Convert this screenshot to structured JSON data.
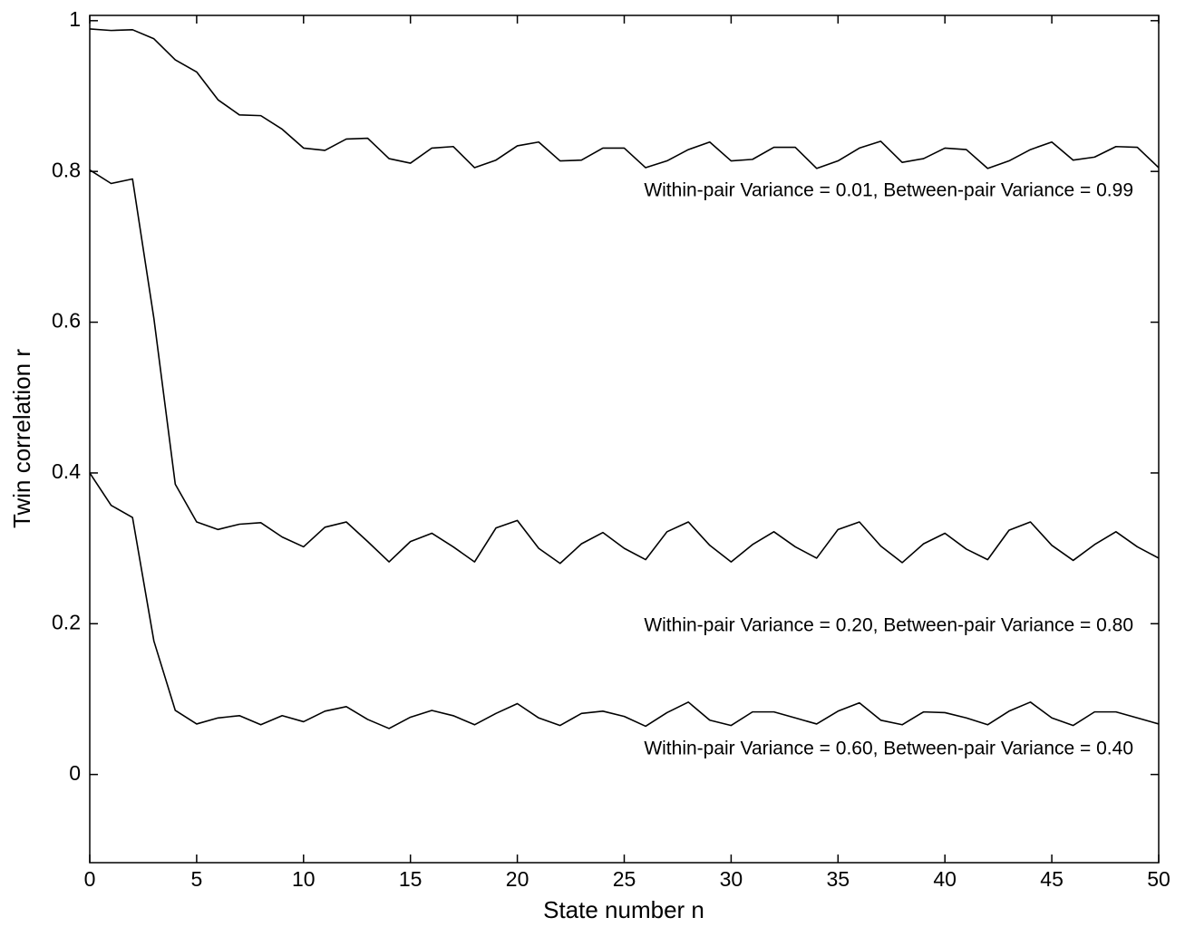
{
  "chart_data": {
    "type": "line",
    "xlabel": "State number n",
    "ylabel": "Twin correlation r",
    "x": [
      0,
      1,
      2,
      3,
      4,
      5,
      6,
      7,
      8,
      9,
      10,
      11,
      12,
      13,
      14,
      15,
      16,
      17,
      18,
      19,
      20,
      21,
      22,
      23,
      24,
      25,
      26,
      27,
      28,
      29,
      30,
      31,
      32,
      33,
      34,
      35,
      36,
      37,
      38,
      39,
      40,
      41,
      42,
      43,
      44,
      45,
      46,
      47,
      48,
      49,
      50
    ],
    "series": [
      {
        "name": "Within-pair Variance = 0.01, Between-pair Variance = 0.99",
        "color": "#000000",
        "values": [
          0.989,
          0.987,
          0.988,
          0.976,
          0.948,
          0.932,
          0.895,
          0.875,
          0.874,
          0.856,
          0.831,
          0.828,
          0.843,
          0.844,
          0.817,
          0.811,
          0.831,
          0.833,
          0.805,
          0.815,
          0.834,
          0.839,
          0.814,
          0.815,
          0.831,
          0.831,
          0.805,
          0.814,
          0.829,
          0.839,
          0.814,
          0.816,
          0.832,
          0.832,
          0.804,
          0.814,
          0.831,
          0.84,
          0.812,
          0.817,
          0.831,
          0.829,
          0.804,
          0.814,
          0.829,
          0.839,
          0.815,
          0.819,
          0.833,
          0.832,
          0.805
        ]
      },
      {
        "name": "Within-pair Variance = 0.20, Between-pair Variance = 0.80",
        "color": "#000000",
        "values": [
          0.802,
          0.784,
          0.79,
          0.605,
          0.385,
          0.335,
          0.325,
          0.332,
          0.334,
          0.315,
          0.302,
          0.328,
          0.335,
          0.309,
          0.282,
          0.309,
          0.32,
          0.302,
          0.282,
          0.327,
          0.337,
          0.3,
          0.28,
          0.306,
          0.321,
          0.3,
          0.285,
          0.322,
          0.335,
          0.304,
          0.282,
          0.305,
          0.322,
          0.302,
          0.287,
          0.325,
          0.335,
          0.303,
          0.281,
          0.306,
          0.32,
          0.299,
          0.285,
          0.324,
          0.335,
          0.304,
          0.284,
          0.305,
          0.322,
          0.302,
          0.287
        ]
      },
      {
        "name": "Within-pair Variance = 0.60, Between-pair Variance = 0.40",
        "color": "#000000",
        "values": [
          0.4,
          0.357,
          0.341,
          0.177,
          0.085,
          0.067,
          0.075,
          0.078,
          0.066,
          0.078,
          0.07,
          0.084,
          0.09,
          0.073,
          0.061,
          0.076,
          0.085,
          0.078,
          0.066,
          0.081,
          0.094,
          0.075,
          0.065,
          0.081,
          0.084,
          0.077,
          0.064,
          0.082,
          0.096,
          0.072,
          0.065,
          0.083,
          0.083,
          0.075,
          0.067,
          0.084,
          0.095,
          0.072,
          0.066,
          0.083,
          0.082,
          0.075,
          0.066,
          0.084,
          0.096,
          0.075,
          0.065,
          0.083,
          0.083,
          0.075,
          0.067
        ]
      }
    ],
    "xlim": [
      0,
      50
    ],
    "xticks": [
      0,
      5,
      10,
      15,
      20,
      25,
      30,
      35,
      40,
      45,
      50
    ],
    "ylim": [
      -0.117,
      1.007
    ],
    "yticks": [
      0,
      0.2,
      0.4,
      0.6,
      0.8,
      1
    ],
    "grid": false
  }
}
